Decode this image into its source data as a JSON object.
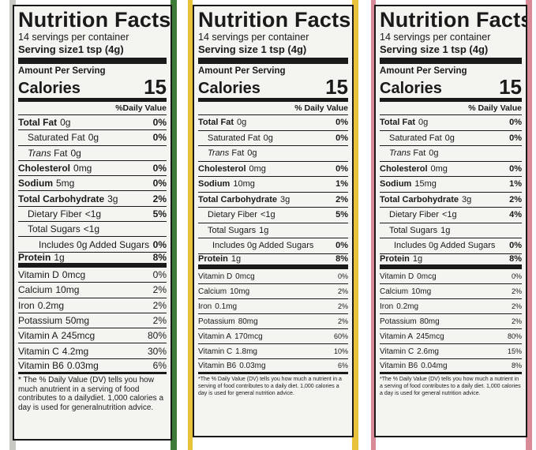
{
  "panels": [
    {
      "title": "Nutrition Facts",
      "servings": "14 servings per container",
      "serving_size": "Serving size1 tsp (4g)",
      "amount_per_serving": "Amount Per Serving",
      "calories_label": "Calories",
      "calories_value": "15",
      "dv_header": "%Daily Value",
      "nutrients": [
        {
          "name": "Total Fat",
          "amount": "0g",
          "dv": "0%",
          "style": "bold"
        },
        {
          "name": "Saturated Fat",
          "amount": "0g",
          "dv": "0%",
          "style": "ind1"
        },
        {
          "prefix": "Trans",
          "name": "Fat",
          "amount": "0g",
          "dv": "",
          "style": "ind1 trans"
        },
        {
          "name": "Cholesterol",
          "amount": "0mg",
          "dv": "0%",
          "style": "bold"
        },
        {
          "name": "Sodium",
          "amount": "5mg",
          "dv": "0%",
          "style": "bold"
        },
        {
          "name": "Total Carbohydrate",
          "amount": "3g",
          "dv": "2%",
          "style": "bold"
        },
        {
          "name": "Dietary Fiber",
          "amount": "<1g",
          "dv": "5%",
          "style": "ind1"
        },
        {
          "name": "Total Sugars",
          "amount": "<1g",
          "dv": "",
          "style": "ind1"
        },
        {
          "name": "Includes 0g Added Sugars",
          "amount": "",
          "dv": "0%",
          "style": "ind3"
        },
        {
          "name": "Protein",
          "amount": "1g",
          "dv": "8%",
          "style": "bold last-macro"
        }
      ],
      "vitamins": [
        {
          "name": "Vitamin D",
          "amount": "0mcg",
          "dv": "0%"
        },
        {
          "name": "Calcium",
          "amount": "10mg",
          "dv": "2%"
        },
        {
          "name": "Iron",
          "amount": "0.2mg",
          "dv": "2%"
        },
        {
          "name": "Potassium",
          "amount": "50mg",
          "dv": "2%"
        },
        {
          "name": "Vitamin A",
          "amount": "245mcg",
          "dv": "80%"
        },
        {
          "name": "Vitamin C",
          "amount": "4.2mg",
          "dv": "30%"
        },
        {
          "name": "Vitamin B6",
          "amount": "0.03mg",
          "dv": "6%"
        }
      ],
      "footnote": "* The % Daily Value (DV) tells you how much anutrient in a serving of food contributes to a dailydiet. 1,000 calories a day is used for generalnutrition advice."
    },
    {
      "title": "Nutrition Facts",
      "servings": "14 servings per container",
      "serving_size": "Serving size 1 tsp (4g)",
      "amount_per_serving": "Amount Per Serving",
      "calories_label": "Calories",
      "calories_value": "15",
      "dv_header": "% Daily Value",
      "nutrients": [
        {
          "name": "Total Fat",
          "amount": "0g",
          "dv": "0%",
          "style": "bold"
        },
        {
          "name": "Saturated Fat",
          "amount": "0g",
          "dv": "0%",
          "style": "ind1"
        },
        {
          "prefix": "Trans",
          "name": "Fat",
          "amount": "0g",
          "dv": "",
          "style": "ind1 trans"
        },
        {
          "name": "Cholesterol",
          "amount": "0mg",
          "dv": "0%",
          "style": "bold"
        },
        {
          "name": "Sodium",
          "amount": "10mg",
          "dv": "1%",
          "style": "bold"
        },
        {
          "name": "Total Carbohydrate",
          "amount": "3g",
          "dv": "2%",
          "style": "bold"
        },
        {
          "name": "Dietary Fiber",
          "amount": "<1g",
          "dv": "5%",
          "style": "ind1"
        },
        {
          "name": "Total Sugars",
          "amount": "1g",
          "dv": "",
          "style": "ind1"
        },
        {
          "name": "Includes 0g Added Sugars",
          "amount": "",
          "dv": "0%",
          "style": "ind2"
        },
        {
          "name": "Protein",
          "amount": "1g",
          "dv": "8%",
          "style": "bold last-macro"
        }
      ],
      "vitamins": [
        {
          "name": "Vitamin D",
          "amount": "0mcg",
          "dv": "0%"
        },
        {
          "name": "Calcium",
          "amount": "10mg",
          "dv": "2%"
        },
        {
          "name": "Iron",
          "amount": "0.1mg",
          "dv": "2%"
        },
        {
          "name": "Potassium",
          "amount": "80mg",
          "dv": "2%"
        },
        {
          "name": "Vitamin A",
          "amount": "170mcg",
          "dv": "60%"
        },
        {
          "name": "Vitamin C",
          "amount": "1.8mg",
          "dv": "10%"
        },
        {
          "name": "Vitamin B6",
          "amount": "0.03mg",
          "dv": "6%"
        }
      ],
      "footnote": "*The % Daily Value (DV) tells you how much a nutrient in a serving of food contributes to a daily diet. 1,000 calories a day is used for general nutrition advice."
    },
    {
      "title": "Nutrition Facts",
      "servings": "14 servings per container",
      "serving_size": "Serving size 1 tsp (4g)",
      "amount_per_serving": "Amount Per Serving",
      "calories_label": "Calories",
      "calories_value": "15",
      "dv_header": "% Daily Value",
      "nutrients": [
        {
          "name": "Total Fat",
          "amount": "0g",
          "dv": "0%",
          "style": "bold"
        },
        {
          "name": "Saturated Fat",
          "amount": "0g",
          "dv": "0%",
          "style": "ind1"
        },
        {
          "prefix": "Trans",
          "name": "Fat",
          "amount": "0g",
          "dv": "",
          "style": "ind1 trans"
        },
        {
          "name": "Cholesterol",
          "amount": "0mg",
          "dv": "0%",
          "style": "bold"
        },
        {
          "name": "Sodium",
          "amount": "15mg",
          "dv": "1%",
          "style": "bold"
        },
        {
          "name": "Total Carbohydrate",
          "amount": "3g",
          "dv": "2%",
          "style": "bold"
        },
        {
          "name": "Dietary Fiber",
          "amount": "<1g",
          "dv": "4%",
          "style": "ind1"
        },
        {
          "name": "Total Sugars",
          "amount": "1g",
          "dv": "",
          "style": "ind1"
        },
        {
          "name": "Includes 0g Added Sugars",
          "amount": "",
          "dv": "0%",
          "style": "ind2"
        },
        {
          "name": "Protein",
          "amount": "1g",
          "dv": "8%",
          "style": "bold last-macro"
        }
      ],
      "vitamins": [
        {
          "name": "Vitamin D",
          "amount": "0mcg",
          "dv": "0%"
        },
        {
          "name": "Calcium",
          "amount": "10mg",
          "dv": "2%"
        },
        {
          "name": "Iron",
          "amount": "0.2mg",
          "dv": "2%"
        },
        {
          "name": "Potassium",
          "amount": "80mg",
          "dv": "2%"
        },
        {
          "name": "Vitamin A",
          "amount": "245mcg",
          "dv": "80%"
        },
        {
          "name": "Vitamin C",
          "amount": "2.6mg",
          "dv": "15%"
        },
        {
          "name": "Vitamin B6",
          "amount": "0.04mg",
          "dv": "8%"
        }
      ],
      "footnote": "*The % Daily Value (DV) tells you how much a nutrient in a serving of food contributes to a daily diet. 1,000 calories a day is used for general nutrition advice."
    }
  ],
  "colors": {
    "panel1_edge": "#3d7a3a",
    "panel2_edge": "#e8c23a",
    "panel3_edge": "#d88a96",
    "ink": "#1a1a1a",
    "paper": "#f4f4f0"
  }
}
